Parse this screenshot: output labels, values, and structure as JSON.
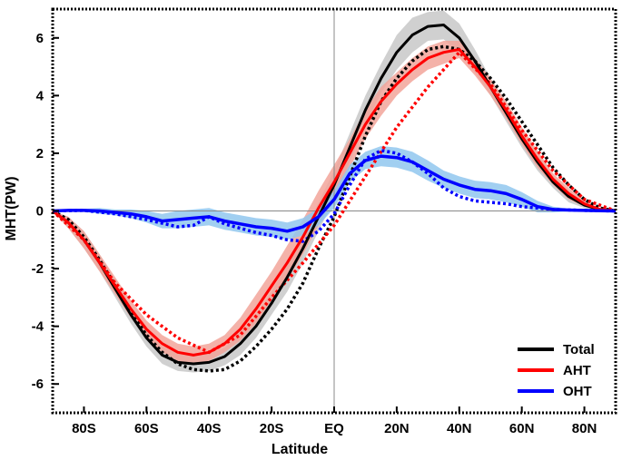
{
  "chart_data": {
    "type": "line",
    "xlabel": "Latitude",
    "ylabel": "MHT(PW)",
    "xlim": [
      -90,
      90
    ],
    "ylim": [
      -7,
      7
    ],
    "x_ticks": [
      {
        "value": -80,
        "label": "80S"
      },
      {
        "value": -60,
        "label": "60S"
      },
      {
        "value": -40,
        "label": "40S"
      },
      {
        "value": -20,
        "label": "20S"
      },
      {
        "value": 0,
        "label": "EQ"
      },
      {
        "value": 20,
        "label": "20N"
      },
      {
        "value": 40,
        "label": "40N"
      },
      {
        "value": 60,
        "label": "60N"
      },
      {
        "value": 80,
        "label": "80N"
      }
    ],
    "y_ticks": [
      {
        "value": -6,
        "label": "-6"
      },
      {
        "value": -4,
        "label": "-4"
      },
      {
        "value": -2,
        "label": "-2"
      },
      {
        "value": 0,
        "label": "0"
      },
      {
        "value": 2,
        "label": "2"
      },
      {
        "value": 4,
        "label": "4"
      },
      {
        "value": 6,
        "label": "6"
      }
    ],
    "zero_lines": {
      "horizontal": 0,
      "vertical": 0
    },
    "legend_position": "bottom-right",
    "series": [
      {
        "name": "Total",
        "color": "#000000",
        "band_color": "#c8c8c8",
        "x": [
          -90,
          -85,
          -80,
          -75,
          -70,
          -65,
          -60,
          -55,
          -50,
          -45,
          -40,
          -35,
          -30,
          -25,
          -20,
          -15,
          -10,
          -5,
          0,
          5,
          10,
          15,
          20,
          25,
          30,
          35,
          40,
          45,
          50,
          55,
          60,
          65,
          70,
          75,
          80,
          85,
          90
        ],
        "y": [
          0,
          -0.4,
          -1.0,
          -1.8,
          -2.7,
          -3.6,
          -4.4,
          -5.0,
          -5.25,
          -5.3,
          -5.25,
          -5.05,
          -4.6,
          -4.0,
          -3.2,
          -2.3,
          -1.3,
          -0.2,
          0.9,
          2.2,
          3.5,
          4.6,
          5.5,
          6.1,
          6.4,
          6.45,
          6.0,
          5.2,
          4.3,
          3.4,
          2.5,
          1.7,
          1.0,
          0.5,
          0.2,
          0.05,
          0
        ],
        "band": [
          0,
          0.2,
          0.3,
          0.3,
          0.3,
          0.3,
          0.3,
          0.3,
          0.3,
          0.3,
          0.3,
          0.3,
          0.4,
          0.4,
          0.4,
          0.5,
          0.5,
          0.5,
          0.5,
          0.5,
          0.5,
          0.5,
          0.6,
          0.6,
          0.5,
          0.5,
          0.5,
          0.4,
          0.3,
          0.3,
          0.3,
          0.3,
          0.2,
          0.2,
          0.1,
          0.05,
          0
        ],
        "dashed": {
          "x": [
            -90,
            -85,
            -80,
            -75,
            -70,
            -65,
            -60,
            -55,
            -50,
            -45,
            -40,
            -35,
            -30,
            -25,
            -20,
            -15,
            -10,
            -5,
            0,
            5,
            10,
            15,
            20,
            25,
            30,
            35,
            40,
            45,
            50,
            55,
            60,
            65,
            70,
            75,
            80,
            85,
            90
          ],
          "y": [
            0,
            -0.3,
            -0.9,
            -1.7,
            -2.6,
            -3.5,
            -4.3,
            -4.9,
            -5.3,
            -5.5,
            -5.55,
            -5.5,
            -5.2,
            -4.7,
            -4.1,
            -3.4,
            -2.5,
            -1.3,
            -0.2,
            1.2,
            2.6,
            3.8,
            4.6,
            5.2,
            5.6,
            5.7,
            5.6,
            5.2,
            4.6,
            3.9,
            3.1,
            2.3,
            1.5,
            0.9,
            0.4,
            0.1,
            0
          ]
        }
      },
      {
        "name": "AHT",
        "color": "#ff0000",
        "band_color": "#f2a49a",
        "x": [
          -90,
          -85,
          -80,
          -75,
          -70,
          -65,
          -60,
          -55,
          -50,
          -45,
          -40,
          -35,
          -30,
          -25,
          -20,
          -15,
          -10,
          -5,
          0,
          5,
          10,
          15,
          20,
          25,
          30,
          35,
          40,
          45,
          50,
          55,
          60,
          65,
          70,
          75,
          80,
          85,
          90
        ],
        "y": [
          0,
          -0.4,
          -1.0,
          -1.8,
          -2.6,
          -3.4,
          -4.1,
          -4.6,
          -4.9,
          -5.0,
          -4.9,
          -4.6,
          -4.1,
          -3.4,
          -2.6,
          -1.8,
          -0.9,
          0.1,
          1.0,
          2.0,
          3.0,
          3.8,
          4.4,
          4.9,
          5.3,
          5.5,
          5.6,
          5.0,
          4.3,
          3.5,
          2.6,
          1.8,
          1.1,
          0.6,
          0.25,
          0.05,
          0
        ],
        "band": [
          0,
          0.2,
          0.3,
          0.3,
          0.3,
          0.3,
          0.3,
          0.3,
          0.3,
          0.3,
          0.3,
          0.3,
          0.4,
          0.5,
          0.5,
          0.6,
          0.6,
          0.6,
          0.6,
          0.5,
          0.5,
          0.5,
          0.4,
          0.4,
          0.4,
          0.4,
          0.3,
          0.3,
          0.3,
          0.3,
          0.3,
          0.3,
          0.2,
          0.2,
          0.1,
          0.05,
          0
        ],
        "dashed": {
          "x": [
            -90,
            -80,
            -70,
            -60,
            -50,
            -40,
            -30,
            -20,
            -10,
            0,
            10,
            20,
            30,
            40,
            50,
            60,
            70,
            80,
            90
          ],
          "y": [
            0,
            -1.0,
            -2.5,
            -3.6,
            -4.4,
            -4.9,
            -4.3,
            -3.0,
            -1.8,
            -0.5,
            1.2,
            2.9,
            4.3,
            5.5,
            4.4,
            2.8,
            1.4,
            0.4,
            0
          ]
        }
      },
      {
        "name": "OHT",
        "color": "#0000ff",
        "band_color": "#91c7ee",
        "x": [
          -90,
          -85,
          -80,
          -75,
          -70,
          -65,
          -60,
          -55,
          -50,
          -45,
          -40,
          -35,
          -30,
          -25,
          -20,
          -15,
          -10,
          -5,
          0,
          5,
          10,
          15,
          20,
          25,
          30,
          35,
          40,
          45,
          50,
          55,
          60,
          65,
          70,
          75,
          80,
          85,
          90
        ],
        "y": [
          0,
          0.02,
          0.02,
          0.0,
          -0.05,
          -0.1,
          -0.2,
          -0.35,
          -0.3,
          -0.25,
          -0.2,
          -0.35,
          -0.45,
          -0.55,
          -0.6,
          -0.7,
          -0.55,
          -0.2,
          0.4,
          1.3,
          1.75,
          1.9,
          1.85,
          1.7,
          1.4,
          1.1,
          0.9,
          0.75,
          0.7,
          0.6,
          0.4,
          0.15,
          0.05,
          0.03,
          0.02,
          0.01,
          0
        ],
        "band": [
          0,
          0.05,
          0.05,
          0.1,
          0.1,
          0.15,
          0.2,
          0.25,
          0.3,
          0.3,
          0.3,
          0.3,
          0.3,
          0.3,
          0.3,
          0.3,
          0.3,
          0.3,
          0.3,
          0.3,
          0.3,
          0.35,
          0.35,
          0.35,
          0.35,
          0.3,
          0.3,
          0.3,
          0.3,
          0.3,
          0.25,
          0.2,
          0.1,
          0.05,
          0.05,
          0.02,
          0
        ],
        "dashed": {
          "x": [
            -90,
            -80,
            -70,
            -60,
            -50,
            -45,
            -40,
            -35,
            -30,
            -25,
            -20,
            -15,
            -10,
            -5,
            0,
            5,
            10,
            15,
            20,
            25,
            30,
            35,
            40,
            45,
            50,
            55,
            60,
            70,
            80,
            90
          ],
          "y": [
            0,
            0.02,
            -0.1,
            -0.3,
            -0.55,
            -0.5,
            -0.2,
            -0.45,
            -0.6,
            -0.75,
            -0.85,
            -1.0,
            -1.05,
            -0.7,
            -0.1,
            0.9,
            1.8,
            2.1,
            2.0,
            1.7,
            1.3,
            0.8,
            0.5,
            0.35,
            0.3,
            0.25,
            0.15,
            0.05,
            0.02,
            0
          ]
        }
      }
    ]
  }
}
